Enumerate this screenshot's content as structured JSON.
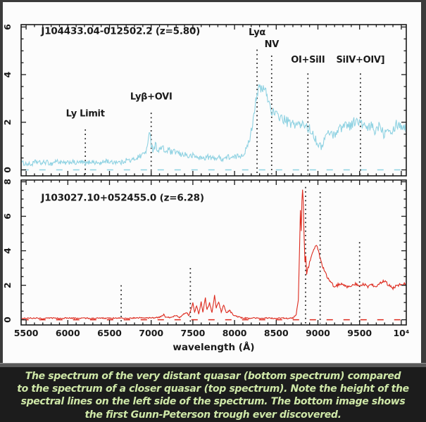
{
  "caption": {
    "lines": [
      "The spectrum of the very distant quasar (bottom spectrum) compared",
      "to the spectrum of a closer quasar (top spectrum). Note the height of the",
      "spectral lines on the left side of the spectrum. The bottom image shows",
      "the first Gunn-Peterson trough ever discovered."
    ],
    "text_color": "#cfe8a8",
    "background": "#1c1c1c"
  },
  "chart_data": {
    "type": "line",
    "x_label": "wavelength (Å)",
    "x_range": [
      5440,
      10060
    ],
    "x_minor_step": 100,
    "x_major_step": 500,
    "x_major_ticks": [
      {
        "value": 5500,
        "label": "5500"
      },
      {
        "value": 6000,
        "label": "6000"
      },
      {
        "value": 6500,
        "label": "6500"
      },
      {
        "value": 7000,
        "label": "7000"
      },
      {
        "value": 7500,
        "label": "7500"
      },
      {
        "value": 8000,
        "label": "8000"
      },
      {
        "value": 8500,
        "label": "8500"
      },
      {
        "value": 9000,
        "label": "9000"
      },
      {
        "value": 9500,
        "label": "9500"
      },
      {
        "value": 10000,
        "label": "10⁴"
      }
    ],
    "axis_color": "#1a1a1a",
    "plot_background": "#fcfcfc",
    "panels": [
      {
        "title": "J104433.04-012502.2 (z=5.80)",
        "title_wavelength": 5680,
        "title_flux": 5.7,
        "series_name": "quasar J104433.04-012502.2 spectrum",
        "series_color": "#8fd2e2",
        "y_range": [
          -0.25,
          6.1
        ],
        "y_major_ticks": [
          0,
          2,
          4,
          6
        ],
        "y_minor_step": 0.5,
        "noise": 0.22,
        "zero_line_dashed": true,
        "markers": [
          {
            "label": "Ly Limit",
            "wavelength": 6210,
            "line_top": 1.7,
            "label_flux": 2.25
          },
          {
            "label": "Lyβ+OVI",
            "wavelength": 7000,
            "line_top": 2.4,
            "label_flux": 2.95
          },
          {
            "label": "Lyα",
            "wavelength": 8270,
            "line_top": 5.05,
            "label_flux": 5.65
          },
          {
            "label": "NV",
            "wavelength": 8445,
            "line_top": 4.8,
            "label_flux": 5.15
          },
          {
            "label": "OI+SiII",
            "wavelength": 8880,
            "line_top": 4.05,
            "label_flux": 4.5
          },
          {
            "label": "SiIV+OIV]",
            "wavelength": 9510,
            "line_top": 4.05,
            "label_flux": 4.5
          }
        ],
        "points": [
          [
            5440,
            0.3
          ],
          [
            5560,
            0.22
          ],
          [
            5620,
            0.35
          ],
          [
            5680,
            0.28
          ],
          [
            5740,
            0.33
          ],
          [
            5800,
            0.25
          ],
          [
            5860,
            0.38
          ],
          [
            5920,
            0.3
          ],
          [
            5980,
            0.27
          ],
          [
            6040,
            0.35
          ],
          [
            6100,
            0.28
          ],
          [
            6160,
            0.33
          ],
          [
            6220,
            0.26
          ],
          [
            6280,
            0.36
          ],
          [
            6340,
            0.3
          ],
          [
            6400,
            0.27
          ],
          [
            6460,
            0.4
          ],
          [
            6520,
            0.3
          ],
          [
            6580,
            0.35
          ],
          [
            6640,
            0.3
          ],
          [
            6700,
            0.42
          ],
          [
            6760,
            0.38
          ],
          [
            6820,
            0.5
          ],
          [
            6880,
            0.6
          ],
          [
            6930,
            0.75
          ],
          [
            6960,
            1.0
          ],
          [
            6985,
            1.75
          ],
          [
            7000,
            1.1
          ],
          [
            7020,
            0.85
          ],
          [
            7050,
            1.05
          ],
          [
            7090,
            0.8
          ],
          [
            7130,
            0.95
          ],
          [
            7170,
            0.75
          ],
          [
            7210,
            0.85
          ],
          [
            7250,
            0.7
          ],
          [
            7300,
            0.78
          ],
          [
            7350,
            0.62
          ],
          [
            7400,
            0.68
          ],
          [
            7450,
            0.55
          ],
          [
            7500,
            0.6
          ],
          [
            7560,
            0.52
          ],
          [
            7620,
            0.48
          ],
          [
            7680,
            0.55
          ],
          [
            7740,
            0.48
          ],
          [
            7800,
            0.52
          ],
          [
            7860,
            0.46
          ],
          [
            7920,
            0.55
          ],
          [
            7980,
            0.5
          ],
          [
            8040,
            0.58
          ],
          [
            8100,
            0.65
          ],
          [
            8150,
            0.9
          ],
          [
            8200,
            1.6
          ],
          [
            8240,
            2.6
          ],
          [
            8270,
            3.25
          ],
          [
            8300,
            3.45
          ],
          [
            8330,
            3.3
          ],
          [
            8360,
            3.45
          ],
          [
            8390,
            3.1
          ],
          [
            8420,
            2.75
          ],
          [
            8450,
            2.45
          ],
          [
            8490,
            2.3
          ],
          [
            8540,
            2.25
          ],
          [
            8590,
            2.1
          ],
          [
            8640,
            2.0
          ],
          [
            8690,
            1.9
          ],
          [
            8740,
            1.95
          ],
          [
            8790,
            1.85
          ],
          [
            8840,
            1.9
          ],
          [
            8890,
            1.75
          ],
          [
            8940,
            1.55
          ],
          [
            8990,
            1.15
          ],
          [
            9040,
            0.95
          ],
          [
            9090,
            1.4
          ],
          [
            9140,
            1.6
          ],
          [
            9190,
            1.45
          ],
          [
            9240,
            1.7
          ],
          [
            9290,
            1.8
          ],
          [
            9340,
            1.95
          ],
          [
            9390,
            1.85
          ],
          [
            9440,
            2.05
          ],
          [
            9490,
            2.0
          ],
          [
            9540,
            1.9
          ],
          [
            9590,
            1.7
          ],
          [
            9640,
            1.85
          ],
          [
            9690,
            1.6
          ],
          [
            9740,
            1.95
          ],
          [
            9790,
            1.5
          ],
          [
            9840,
            1.85
          ],
          [
            9890,
            1.6
          ],
          [
            9940,
            1.95
          ],
          [
            10060,
            1.75
          ]
        ]
      },
      {
        "title": "J103027.10+052455.0 (z=6.28)",
        "title_wavelength": 5680,
        "title_flux": 6.9,
        "series_name": "quasar J103027.10+052455.0 spectrum (Gunn-Peterson trough)",
        "series_color": "#dd2a1e",
        "y_range": [
          -0.3,
          8.1
        ],
        "y_major_ticks": [
          0,
          2,
          4,
          6,
          8
        ],
        "y_minor_step": 0.5,
        "noise": 0.09,
        "zero_line_dashed": true,
        "markers": [
          {
            "label": "",
            "wavelength": 6640,
            "line_top": 2.0
          },
          {
            "label": "",
            "wavelength": 7470,
            "line_top": 3.0
          },
          {
            "label": "",
            "wavelength": 8852,
            "line_top": 7.7
          },
          {
            "label": "",
            "wavelength": 9027,
            "line_top": 7.4
          },
          {
            "label": "",
            "wavelength": 9500,
            "line_top": 4.5
          }
        ],
        "points": [
          [
            5440,
            0.08
          ],
          [
            5600,
            0.1
          ],
          [
            5700,
            0.07
          ],
          [
            5800,
            0.1
          ],
          [
            5900,
            0.08
          ],
          [
            6000,
            0.1
          ],
          [
            6100,
            0.08
          ],
          [
            6200,
            0.1
          ],
          [
            6300,
            0.08
          ],
          [
            6400,
            0.1
          ],
          [
            6500,
            0.08
          ],
          [
            6600,
            0.1
          ],
          [
            6700,
            0.08
          ],
          [
            6800,
            0.1
          ],
          [
            6900,
            0.12
          ],
          [
            7000,
            0.1
          ],
          [
            7100,
            0.14
          ],
          [
            7150,
            0.3
          ],
          [
            7180,
            0.12
          ],
          [
            7250,
            0.15
          ],
          [
            7300,
            0.25
          ],
          [
            7340,
            0.14
          ],
          [
            7380,
            0.3
          ],
          [
            7420,
            0.45
          ],
          [
            7450,
            0.25
          ],
          [
            7480,
            0.6
          ],
          [
            7500,
            0.95
          ],
          [
            7520,
            0.45
          ],
          [
            7545,
            0.8
          ],
          [
            7570,
            0.35
          ],
          [
            7600,
            1.05
          ],
          [
            7620,
            0.45
          ],
          [
            7650,
            1.3
          ],
          [
            7670,
            0.55
          ],
          [
            7700,
            1.0
          ],
          [
            7730,
            0.4
          ],
          [
            7760,
            1.45
          ],
          [
            7780,
            0.65
          ],
          [
            7810,
            1.05
          ],
          [
            7840,
            0.45
          ],
          [
            7870,
            0.85
          ],
          [
            7900,
            0.4
          ],
          [
            7940,
            0.55
          ],
          [
            7980,
            0.3
          ],
          [
            8020,
            0.2
          ],
          [
            8080,
            0.12
          ],
          [
            8160,
            0.08
          ],
          [
            8240,
            0.1
          ],
          [
            8320,
            0.08
          ],
          [
            8400,
            0.1
          ],
          [
            8480,
            0.08
          ],
          [
            8560,
            0.1
          ],
          [
            8640,
            0.08
          ],
          [
            8700,
            0.1
          ],
          [
            8740,
            0.3
          ],
          [
            8765,
            1.2
          ],
          [
            8780,
            4.2
          ],
          [
            8790,
            6.3
          ],
          [
            8800,
            5.2
          ],
          [
            8808,
            6.9
          ],
          [
            8816,
            7.55
          ],
          [
            8824,
            6.8
          ],
          [
            8832,
            5.2
          ],
          [
            8845,
            3.3
          ],
          [
            8855,
            3.7
          ],
          [
            8865,
            2.6
          ],
          [
            8880,
            3.0
          ],
          [
            8900,
            3.3
          ],
          [
            8925,
            3.7
          ],
          [
            8950,
            4.1
          ],
          [
            8975,
            4.35
          ],
          [
            9000,
            4.1
          ],
          [
            9030,
            3.5
          ],
          [
            9060,
            3.05
          ],
          [
            9100,
            2.6
          ],
          [
            9150,
            2.2
          ],
          [
            9200,
            1.9
          ],
          [
            9250,
            2.05
          ],
          [
            9300,
            2.1
          ],
          [
            9350,
            1.9
          ],
          [
            9400,
            2.0
          ],
          [
            9450,
            2.1
          ],
          [
            9500,
            1.95
          ],
          [
            9550,
            2.05
          ],
          [
            9600,
            1.9
          ],
          [
            9650,
            2.0
          ],
          [
            9700,
            1.9
          ],
          [
            9750,
            2.1
          ],
          [
            9800,
            2.25
          ],
          [
            9850,
            2.0
          ],
          [
            9900,
            1.85
          ],
          [
            9950,
            2.0
          ],
          [
            10060,
            2.1
          ]
        ]
      }
    ]
  }
}
